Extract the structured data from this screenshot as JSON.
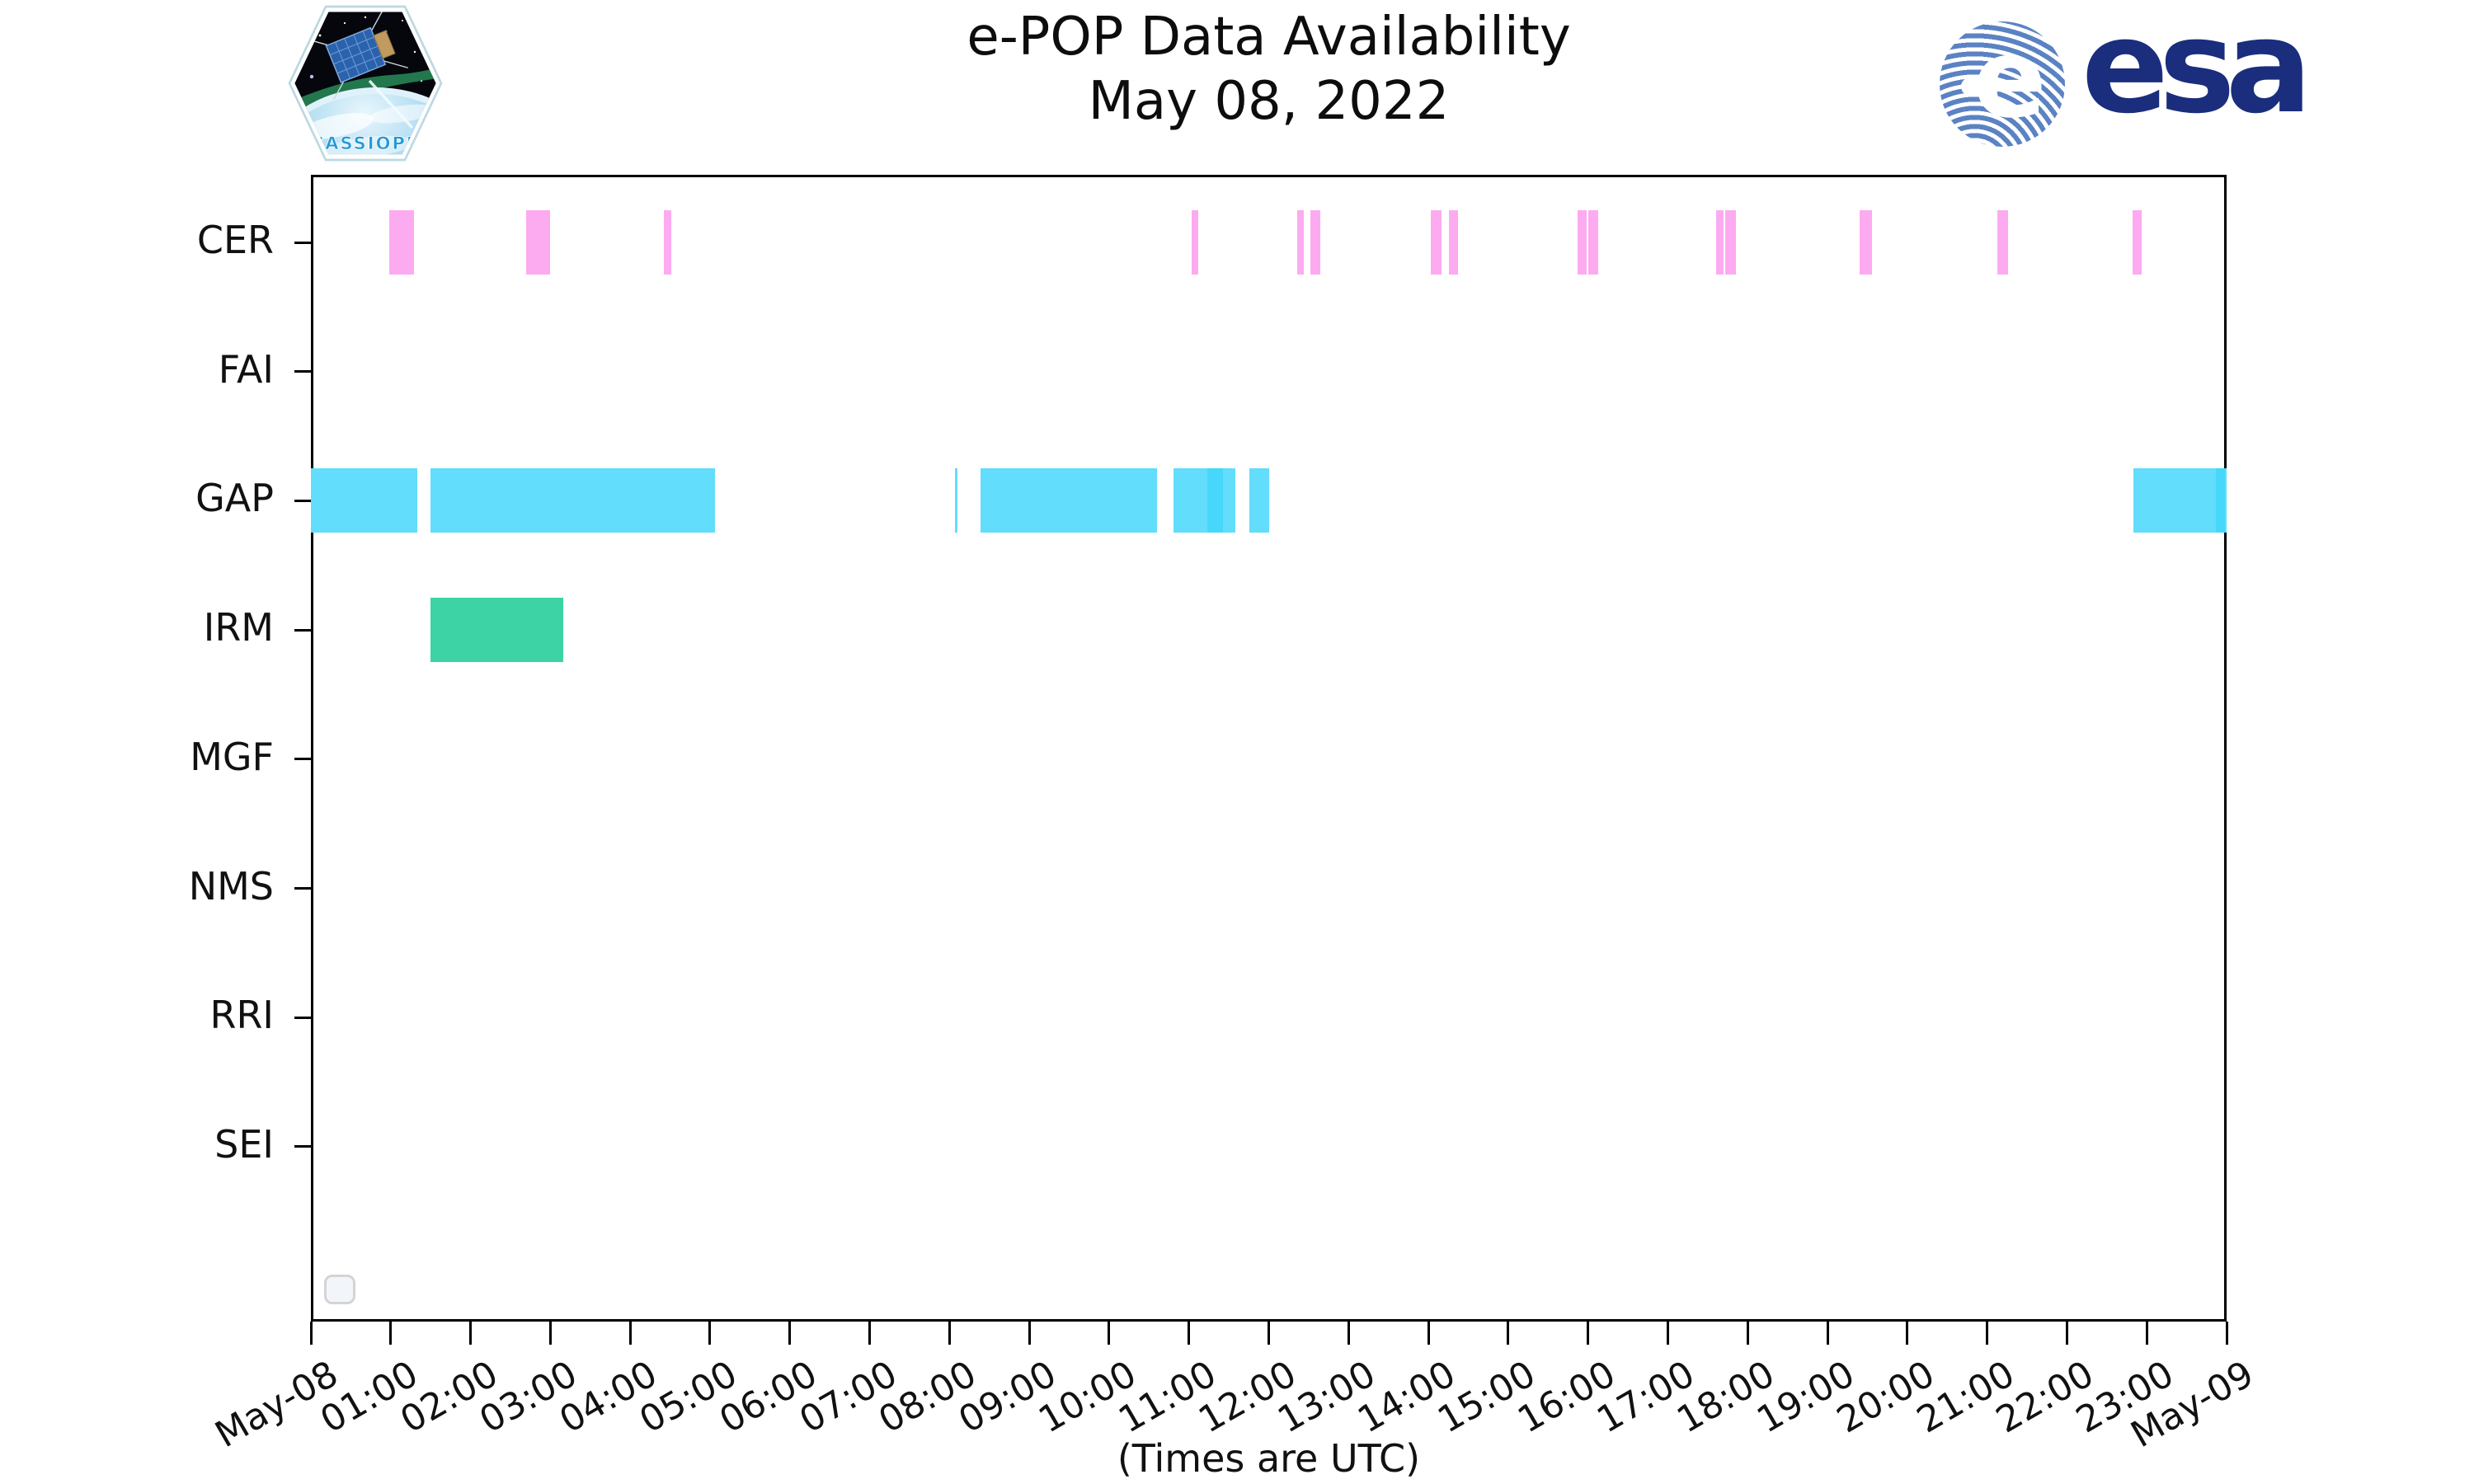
{
  "header": {
    "title": "e-POP Data Availability",
    "date": "May 08, 2022",
    "cassiope_label": "CASSIOPE",
    "esa_label": "esa"
  },
  "footer": {
    "xlabel": "(Times are UTC)"
  },
  "chart_data": {
    "type": "timeline",
    "title": "e-POP Data Availability",
    "subtitle": "May 08, 2022",
    "xlabel": "(Times are UTC)",
    "x_axis": {
      "start": "May-08 00:00 UTC",
      "end": "May-09 00:00 UTC",
      "hours_span": 24,
      "tick_labels": [
        "May-08",
        "01:00",
        "02:00",
        "03:00",
        "04:00",
        "05:00",
        "06:00",
        "07:00",
        "08:00",
        "09:00",
        "10:00",
        "11:00",
        "12:00",
        "13:00",
        "14:00",
        "15:00",
        "16:00",
        "17:00",
        "18:00",
        "19:00",
        "20:00",
        "21:00",
        "22:00",
        "23:00",
        "May-09"
      ]
    },
    "rows": [
      "CER",
      "FAI",
      "GAP",
      "IRM",
      "MGF",
      "NMS",
      "RRI",
      "SEI"
    ],
    "colors": {
      "cer": "#fcabf0",
      "gap": "#62ddfb",
      "gap_overlap": "#47d7fa",
      "irm": "#3dd3a5"
    },
    "segments": [
      {
        "row": "CER",
        "start": "00:59",
        "end": "01:17",
        "start_h": 0.98,
        "end_h": 1.29,
        "color": "cer"
      },
      {
        "row": "CER",
        "start": "02:42",
        "end": "03:00",
        "start_h": 2.7,
        "end_h": 3.0,
        "color": "cer"
      },
      {
        "row": "CER",
        "start": "04:25",
        "end": "04:31",
        "start_h": 4.42,
        "end_h": 4.52,
        "color": "cer"
      },
      {
        "row": "CER",
        "start": "11:02",
        "end": "11:07",
        "start_h": 11.03,
        "end_h": 11.12,
        "color": "cer"
      },
      {
        "row": "CER",
        "start": "12:22",
        "end": "12:26",
        "start_h": 12.36,
        "end_h": 12.44,
        "color": "cer"
      },
      {
        "row": "CER",
        "start": "12:31",
        "end": "12:39",
        "start_h": 12.52,
        "end_h": 12.65,
        "color": "cer"
      },
      {
        "row": "CER",
        "start": "14:02",
        "end": "14:10",
        "start_h": 14.03,
        "end_h": 14.16,
        "color": "cer"
      },
      {
        "row": "CER",
        "start": "14:16",
        "end": "14:22",
        "start_h": 14.26,
        "end_h": 14.37,
        "color": "cer"
      },
      {
        "row": "CER",
        "start": "15:52",
        "end": "15:59",
        "start_h": 15.87,
        "end_h": 15.98,
        "color": "cer"
      },
      {
        "row": "CER",
        "start": "16:00",
        "end": "16:08",
        "start_h": 16.0,
        "end_h": 16.13,
        "color": "cer"
      },
      {
        "row": "CER",
        "start": "17:36",
        "end": "17:42",
        "start_h": 17.6,
        "end_h": 17.7,
        "color": "cer"
      },
      {
        "row": "CER",
        "start": "17:43",
        "end": "17:51",
        "start_h": 17.72,
        "end_h": 17.85,
        "color": "cer"
      },
      {
        "row": "CER",
        "start": "19:24",
        "end": "19:34",
        "start_h": 19.4,
        "end_h": 19.56,
        "color": "cer"
      },
      {
        "row": "CER",
        "start": "21:08",
        "end": "21:16",
        "start_h": 21.13,
        "end_h": 21.26,
        "color": "cer"
      },
      {
        "row": "CER",
        "start": "22:49",
        "end": "22:56",
        "start_h": 22.82,
        "end_h": 22.94,
        "color": "cer"
      },
      {
        "row": "GAP",
        "start": "00:00",
        "end": "01:20",
        "start_h": 0.0,
        "end_h": 1.33,
        "color": "gap"
      },
      {
        "row": "GAP",
        "start": "01:30",
        "end": "05:04",
        "start_h": 1.5,
        "end_h": 5.06,
        "color": "gap"
      },
      {
        "row": "GAP",
        "start": "08:04",
        "end": "08:06",
        "start_h": 8.07,
        "end_h": 8.1,
        "color": "gap"
      },
      {
        "row": "GAP",
        "start": "08:23",
        "end": "10:36",
        "start_h": 8.39,
        "end_h": 10.6,
        "color": "gap"
      },
      {
        "row": "GAP",
        "start": "10:49",
        "end": "11:35",
        "start_h": 10.81,
        "end_h": 11.58,
        "color": "gap"
      },
      {
        "row": "GAP",
        "start": "11:14",
        "end": "11:26",
        "start_h": 11.23,
        "end_h": 11.43,
        "color": "gap_overlap"
      },
      {
        "row": "GAP",
        "start": "11:46",
        "end": "12:01",
        "start_h": 11.76,
        "end_h": 12.01,
        "color": "gap"
      },
      {
        "row": "GAP",
        "start": "22:50",
        "end": "24:00",
        "start_h": 22.83,
        "end_h": 24.0,
        "color": "gap"
      },
      {
        "row": "GAP",
        "start": "23:52",
        "end": "23:59",
        "start_h": 23.87,
        "end_h": 23.98,
        "color": "gap_overlap"
      },
      {
        "row": "IRM",
        "start": "01:30",
        "end": "03:10",
        "start_h": 1.5,
        "end_h": 3.16,
        "color": "irm"
      }
    ]
  }
}
